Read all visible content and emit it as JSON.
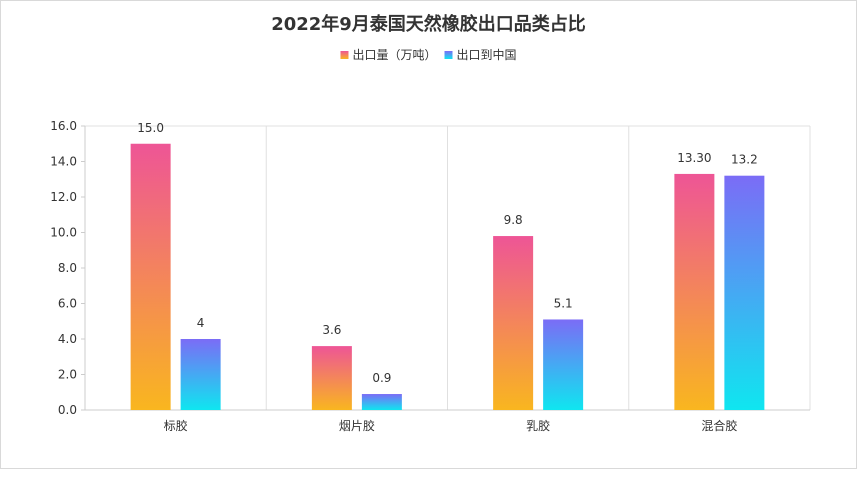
{
  "chart_data": {
    "type": "bar",
    "title": "2022年9月泰国天然橡胶出口品类占比",
    "categories": [
      "标胶",
      "烟片胶",
      "乳胶",
      "混合胶"
    ],
    "series": [
      {
        "name": "出口量（万吨）",
        "values": [
          15.0,
          3.6,
          9.8,
          13.3
        ],
        "labels": [
          "15.0",
          "3.6",
          "9.8",
          "13.30"
        ],
        "gradient": [
          "#ee5596",
          "#f9b61f"
        ]
      },
      {
        "name": "出口到中国",
        "values": [
          4,
          0.9,
          5.1,
          13.2
        ],
        "labels": [
          "4",
          "0.9",
          "5.1",
          "13.2"
        ],
        "gradient": [
          "#7b6cf6",
          "#0fe6f0"
        ]
      }
    ],
    "y_ticks": [
      "0.0",
      "2.0",
      "4.0",
      "6.0",
      "8.0",
      "10.0",
      "12.0",
      "14.0",
      "16.0"
    ],
    "ylim": [
      0,
      16
    ],
    "legend_position": "top-center",
    "grid": "vertical-category-separators"
  }
}
